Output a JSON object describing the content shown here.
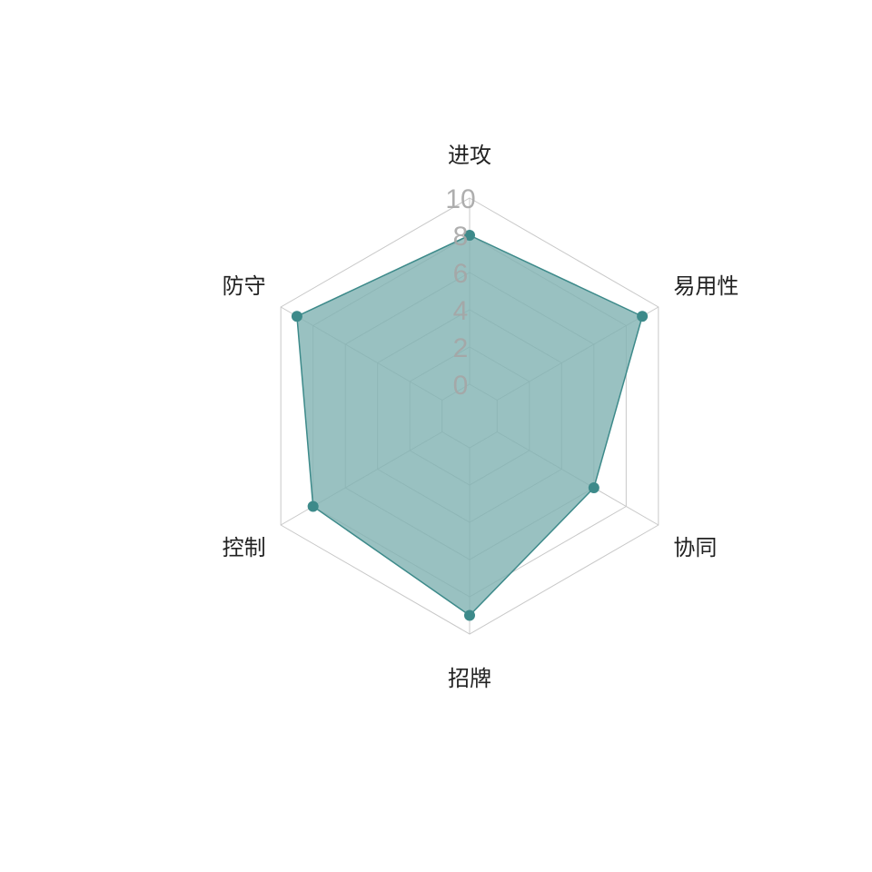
{
  "chart_data": {
    "type": "radar",
    "title": "",
    "axes": [
      "进攻",
      "易用性",
      "协同",
      "招牌",
      "控制",
      "防守"
    ],
    "series": [
      {
        "values": [
          8,
          9,
          6,
          9,
          8,
          9
        ],
        "color": "#3d8a8a",
        "fill": "#7fb2b2"
      }
    ],
    "rlim": [
      0,
      10
    ],
    "ticks": [
      "0",
      "2",
      "4",
      "6",
      "8",
      "10"
    ],
    "grid": true,
    "legend": "none"
  }
}
